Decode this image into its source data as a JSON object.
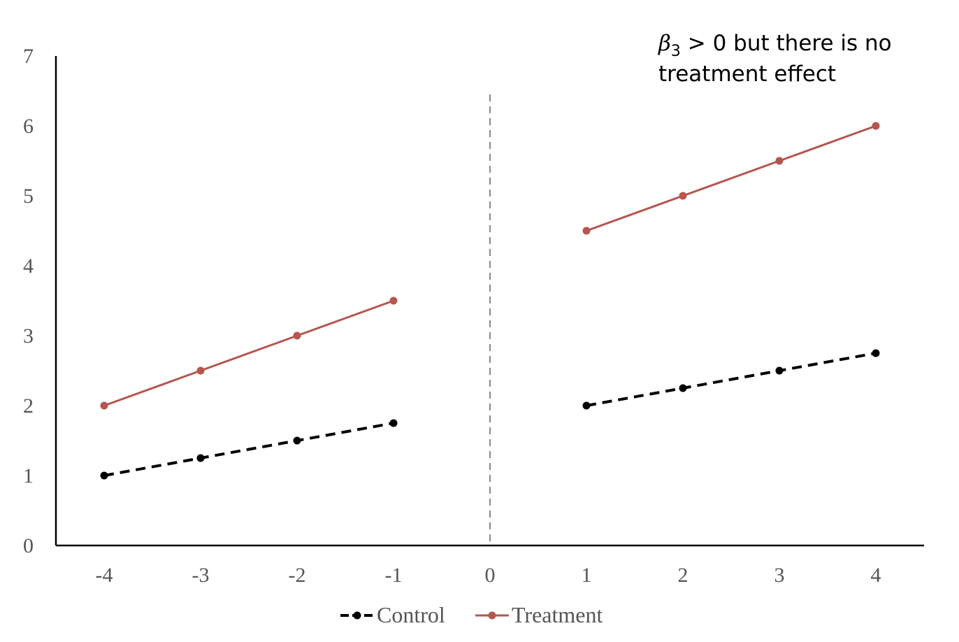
{
  "chart_data": {
    "type": "line",
    "x": [
      -4,
      -3,
      -2,
      -1,
      0,
      1,
      2,
      3,
      4
    ],
    "xlim": [
      -4.5,
      4.5
    ],
    "ylim": [
      0,
      7
    ],
    "x_ticks": [
      "-4",
      "-3",
      "-2",
      "-1",
      "0",
      "1",
      "2",
      "3",
      "4"
    ],
    "y_ticks": [
      "0",
      "1",
      "2",
      "3",
      "4",
      "5",
      "6",
      "7"
    ],
    "grid": false,
    "legend_position": "bottom",
    "cutoff_x": 0,
    "annotation": {
      "beta": "β",
      "subscript": "3",
      "rest_line1": " > 0 but there is no",
      "line2": "treatment effect"
    },
    "series": [
      {
        "name": "Control",
        "color": "#000000",
        "style": "dashed",
        "segments": [
          {
            "x": [
              -4,
              -3,
              -2,
              -1
            ],
            "y": [
              1,
              1.25,
              1.5,
              1.75
            ]
          },
          {
            "x": [
              1,
              2,
              3,
              4
            ],
            "y": [
              2,
              2.25,
              2.5,
              2.75
            ]
          }
        ]
      },
      {
        "name": "Treatment",
        "color": "#b5564f",
        "style": "solid",
        "segments": [
          {
            "x": [
              -4,
              -3,
              -2,
              -1
            ],
            "y": [
              2,
              2.5,
              3,
              3.5
            ]
          },
          {
            "x": [
              1,
              2,
              3,
              4
            ],
            "y": [
              4.5,
              5,
              5.5,
              6
            ]
          }
        ]
      }
    ]
  }
}
